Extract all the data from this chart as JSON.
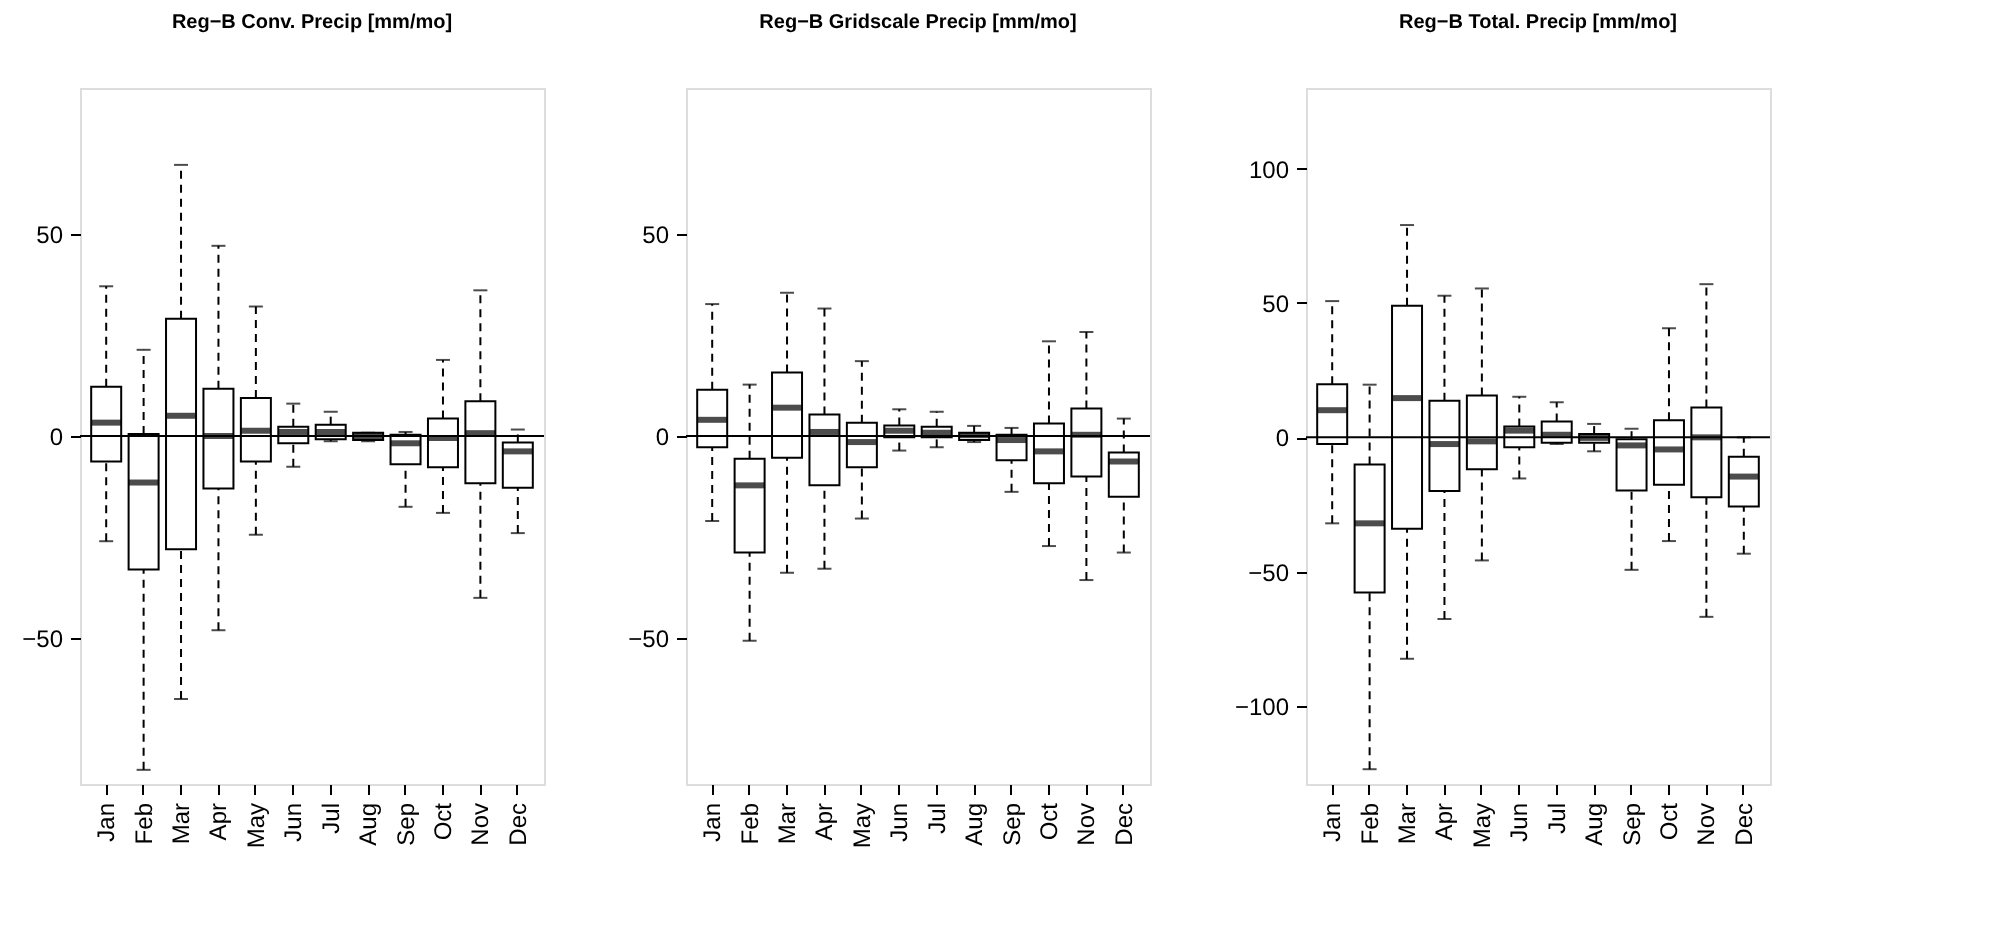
{
  "chart_data": [
    {
      "type": "box",
      "title": "Reg−B Conv. Precip [mm/mo]",
      "categories": [
        "Jan",
        "Feb",
        "Mar",
        "Apr",
        "May",
        "Jun",
        "Jul",
        "Aug",
        "Sep",
        "Oct",
        "Nov",
        "Dec"
      ],
      "ylim": [
        -86,
        86
      ],
      "yticks": [
        -50,
        0,
        50
      ],
      "grid": false,
      "line_style": "dashed",
      "ref_lines": [
        {
          "axis": "y",
          "value": 0,
          "color": "#000000"
        }
      ],
      "boxes": [
        {
          "low": -26,
          "q1": -6.3,
          "median": 3.3,
          "q3": 12.2,
          "high": 37
        },
        {
          "low": -82.5,
          "q1": -33,
          "median": -11.5,
          "q3": 0.5,
          "high": 21.3
        },
        {
          "low": -65,
          "q1": -28,
          "median": 5,
          "q3": 29,
          "high": 67
        },
        {
          "low": -48,
          "q1": -13,
          "median": 0,
          "q3": 11.7,
          "high": 47
        },
        {
          "low": -24.4,
          "q1": -6.3,
          "median": 1.3,
          "q3": 9.4,
          "high": 32
        },
        {
          "low": -7.6,
          "q1": -1.8,
          "median": 1,
          "q3": 2.3,
          "high": 8
        },
        {
          "low": -1.3,
          "q1": -0.8,
          "median": 1,
          "q3": 2.8,
          "high": 6
        },
        {
          "low": -1.3,
          "q1": -1,
          "median": 0,
          "q3": 0.8,
          "high": 0.8
        },
        {
          "low": -17.5,
          "q1": -7,
          "median": -1.8,
          "q3": 0.3,
          "high": 1
        },
        {
          "low": -19,
          "q1": -7.7,
          "median": -0.5,
          "q3": 4.3,
          "high": 18.8
        },
        {
          "low": -40,
          "q1": -11.7,
          "median": 0.7,
          "q3": 8.6,
          "high": 36
        },
        {
          "low": -24,
          "q1": -12.8,
          "median": -3.8,
          "q3": -1.6,
          "high": 1.6
        }
      ]
    },
    {
      "type": "box",
      "title": "Reg−B Gridscale Precip [mm/mo]",
      "categories": [
        "Jan",
        "Feb",
        "Mar",
        "Apr",
        "May",
        "Jun",
        "Jul",
        "Aug",
        "Sep",
        "Oct",
        "Nov",
        "Dec"
      ],
      "ylim": [
        -86,
        86
      ],
      "yticks": [
        -50,
        0,
        50
      ],
      "grid": false,
      "line_style": "dashed",
      "ref_lines": [
        {
          "axis": "y",
          "value": 0,
          "color": "#000000"
        }
      ],
      "boxes": [
        {
          "low": -21,
          "q1": -2.8,
          "median": 4,
          "q3": 11.4,
          "high": 32.6
        },
        {
          "low": -50.6,
          "q1": -28.8,
          "median": -12.2,
          "q3": -5.6,
          "high": 12.7
        },
        {
          "low": -33.8,
          "q1": -5.4,
          "median": 7,
          "q3": 15.7,
          "high": 35.4
        },
        {
          "low": -32.8,
          "q1": -12.2,
          "median": 1,
          "q3": 5.3,
          "high": 31.5
        },
        {
          "low": -20.4,
          "q1": -7.7,
          "median": -1.5,
          "q3": 3.3,
          "high": 18.5
        },
        {
          "low": -3.6,
          "q1": -0.3,
          "median": 1.3,
          "q3": 2.6,
          "high": 6.6
        },
        {
          "low": -2.8,
          "q1": -0.3,
          "median": 0.8,
          "q3": 2.3,
          "high": 6
        },
        {
          "low": -1.5,
          "q1": -1,
          "median": 0.2,
          "q3": 0.8,
          "high": 2.5
        },
        {
          "low": -13.8,
          "q1": -6,
          "median": -1,
          "q3": 0.3,
          "high": 2
        },
        {
          "low": -27.2,
          "q1": -11.7,
          "median": -3.8,
          "q3": 3.1,
          "high": 23.4
        },
        {
          "low": -35.6,
          "q1": -10,
          "median": 0.3,
          "q3": 6.8,
          "high": 25.7
        },
        {
          "low": -28.8,
          "q1": -15,
          "median": -6.3,
          "q3": -4.1,
          "high": 4.3
        }
      ]
    },
    {
      "type": "box",
      "title": "Reg−B Total. Precip [mm/mo]",
      "categories": [
        "Jan",
        "Feb",
        "Mar",
        "Apr",
        "May",
        "Jun",
        "Jul",
        "Aug",
        "Sep",
        "Oct",
        "Nov",
        "Dec"
      ],
      "ylim": [
        -129,
        130
      ],
      "yticks": [
        -100,
        -50,
        0,
        50,
        100
      ],
      "grid": false,
      "line_style": "dashed",
      "ref_lines": [
        {
          "axis": "y",
          "value": 0,
          "color": "#000000"
        }
      ],
      "boxes": [
        {
          "low": -32,
          "q1": -2.5,
          "median": 10.1,
          "q3": 19.8,
          "high": 50.7
        },
        {
          "low": -123.5,
          "q1": -57.7,
          "median": -32,
          "q3": -10.1,
          "high": 19.6
        },
        {
          "low": -82.4,
          "q1": -34,
          "median": 14.6,
          "q3": 49,
          "high": 79
        },
        {
          "low": -67.6,
          "q1": -20,
          "median": -2.5,
          "q3": 13.6,
          "high": 52.7
        },
        {
          "low": -45.8,
          "q1": -11.9,
          "median": -1.5,
          "q3": 15.6,
          "high": 55.4
        },
        {
          "low": -15.3,
          "q1": -3.7,
          "median": 2.5,
          "q3": 4,
          "high": 15.1
        },
        {
          "low": -2.5,
          "q1": -2,
          "median": 1,
          "q3": 5.9,
          "high": 13.1
        },
        {
          "low": -5.2,
          "q1": -2,
          "median": -0.2,
          "q3": 1.2,
          "high": 5
        },
        {
          "low": -49.3,
          "q1": -19.8,
          "median": -3,
          "q3": -0.7,
          "high": 3.2
        },
        {
          "low": -38.6,
          "q1": -17.6,
          "median": -4.5,
          "q3": 6.4,
          "high": 40.6
        },
        {
          "low": -66.8,
          "q1": -22.3,
          "median": 0,
          "q3": 11.1,
          "high": 57
        },
        {
          "low": -43.3,
          "q1": -25.7,
          "median": -14.6,
          "q3": -7.2,
          "high": 0
        }
      ]
    }
  ]
}
